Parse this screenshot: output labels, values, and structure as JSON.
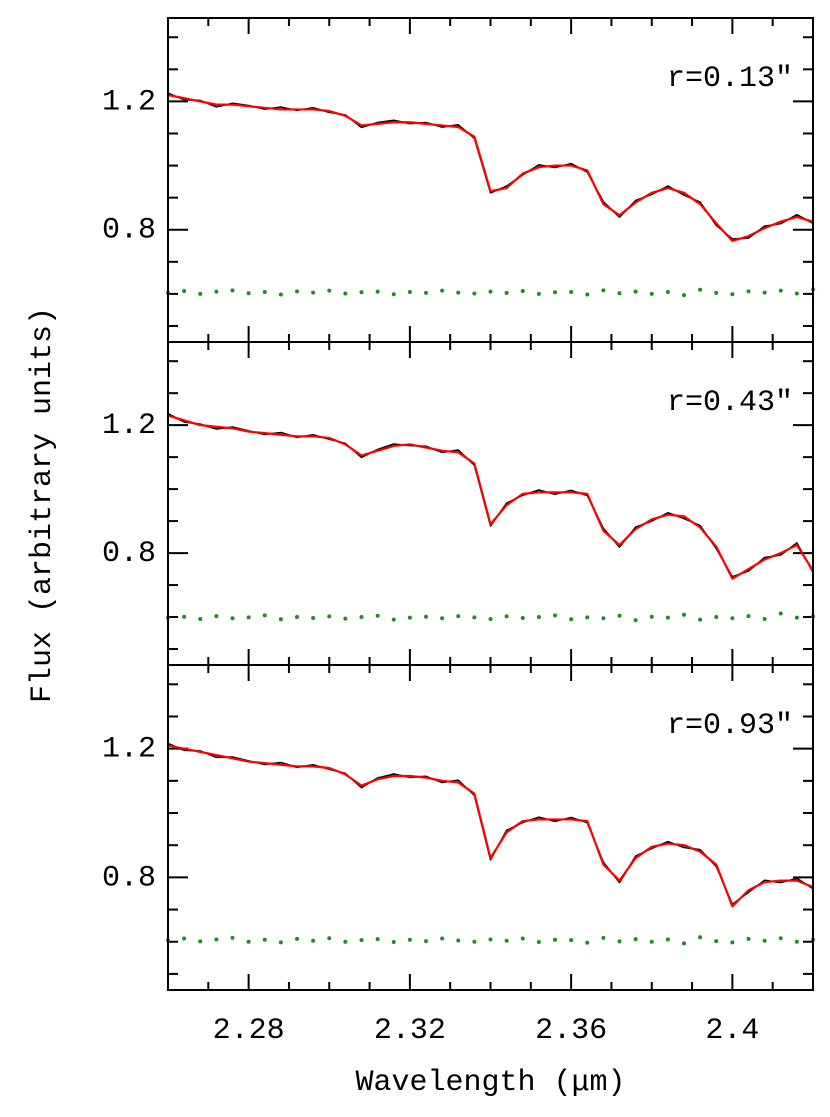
{
  "chart_data": [
    {
      "type": "line",
      "annotation": "r=0.13″",
      "x": [
        2.26,
        2.264,
        2.268,
        2.272,
        2.276,
        2.28,
        2.284,
        2.288,
        2.292,
        2.296,
        2.3,
        2.304,
        2.308,
        2.312,
        2.316,
        2.32,
        2.324,
        2.328,
        2.332,
        2.336,
        2.34,
        2.344,
        2.348,
        2.352,
        2.356,
        2.36,
        2.364,
        2.368,
        2.372,
        2.376,
        2.38,
        2.384,
        2.388,
        2.392,
        2.396,
        2.4,
        2.404,
        2.408,
        2.412,
        2.416,
        2.42
      ],
      "series": [
        {
          "type": "line",
          "color": "#000000",
          "values": [
            1.226,
            1.205,
            1.203,
            1.183,
            1.194,
            1.187,
            1.176,
            1.182,
            1.172,
            1.18,
            1.166,
            1.158,
            1.119,
            1.134,
            1.141,
            1.131,
            1.134,
            1.12,
            1.127,
            1.085,
            0.915,
            0.936,
            0.971,
            1.002,
            0.994,
            1.006,
            0.98,
            0.887,
            0.839,
            0.891,
            0.91,
            0.936,
            0.908,
            0.886,
            0.814,
            0.771,
            0.774,
            0.811,
            0.819,
            0.847,
            0.82
          ]
        },
        {
          "type": "line",
          "color": "#ff0000",
          "values": [
            1.22,
            1.21,
            1.2,
            1.19,
            1.19,
            1.185,
            1.18,
            1.175,
            1.175,
            1.175,
            1.17,
            1.155,
            1.125,
            1.13,
            1.135,
            1.135,
            1.13,
            1.125,
            1.12,
            1.09,
            0.92,
            0.93,
            0.975,
            0.995,
            1.0,
            1.0,
            0.985,
            0.88,
            0.845,
            0.885,
            0.915,
            0.93,
            0.915,
            0.88,
            0.82,
            0.765,
            0.78,
            0.805,
            0.825,
            0.84,
            0.825
          ]
        },
        {
          "type": "scatter",
          "color": "#228b22",
          "values": [
            0.603,
            0.609,
            0.6,
            0.607,
            0.611,
            0.602,
            0.606,
            0.598,
            0.608,
            0.604,
            0.61,
            0.601,
            0.605,
            0.607,
            0.599,
            0.606,
            0.603,
            0.61,
            0.604,
            0.601,
            0.607,
            0.603,
            0.609,
            0.6,
            0.605,
            0.606,
            0.598,
            0.611,
            0.602,
            0.607,
            0.6,
            0.606,
            0.596,
            0.613,
            0.603,
            0.599,
            0.608,
            0.604,
            0.61,
            0.601,
            0.614
          ]
        }
      ],
      "xlim": [
        2.26,
        2.42
      ],
      "ylim": [
        0.45,
        1.46
      ],
      "xticks": [
        2.28,
        2.32,
        2.36,
        2.4
      ],
      "yticks": [
        0.8,
        1.2
      ],
      "xminorticks": [
        2.27,
        2.29,
        2.3,
        2.31,
        2.33,
        2.34,
        2.35,
        2.37,
        2.38,
        2.39,
        2.41
      ],
      "yminorticks": [
        0.5,
        0.6,
        0.7,
        0.9,
        1.0,
        1.1,
        1.3,
        1.4
      ]
    },
    {
      "type": "line",
      "annotation": "r=0.43″",
      "ylabel": "Flux (arbitrary units)",
      "x": [
        2.26,
        2.264,
        2.268,
        2.272,
        2.276,
        2.28,
        2.284,
        2.288,
        2.292,
        2.296,
        2.3,
        2.304,
        2.308,
        2.312,
        2.316,
        2.32,
        2.324,
        2.328,
        2.332,
        2.336,
        2.34,
        2.344,
        2.348,
        2.352,
        2.356,
        2.36,
        2.364,
        2.368,
        2.372,
        2.376,
        2.38,
        2.384,
        2.388,
        2.392,
        2.396,
        2.4,
        2.404,
        2.408,
        2.412,
        2.416,
        2.42
      ],
      "series": [
        {
          "type": "line",
          "color": "#000000",
          "values": [
            1.236,
            1.21,
            1.203,
            1.188,
            1.194,
            1.182,
            1.171,
            1.177,
            1.162,
            1.17,
            1.156,
            1.143,
            1.099,
            1.124,
            1.141,
            1.136,
            1.134,
            1.115,
            1.122,
            1.075,
            0.885,
            0.956,
            0.981,
            0.997,
            0.984,
            0.996,
            0.98,
            0.877,
            0.819,
            0.881,
            0.9,
            0.926,
            0.908,
            0.886,
            0.814,
            0.726,
            0.744,
            0.786,
            0.794,
            0.832,
            0.74
          ]
        },
        {
          "type": "line",
          "color": "#ff0000",
          "values": [
            1.23,
            1.215,
            1.2,
            1.195,
            1.19,
            1.18,
            1.175,
            1.17,
            1.165,
            1.165,
            1.16,
            1.14,
            1.105,
            1.12,
            1.135,
            1.14,
            1.13,
            1.12,
            1.115,
            1.08,
            0.89,
            0.95,
            0.985,
            0.99,
            0.99,
            0.99,
            0.985,
            0.87,
            0.825,
            0.875,
            0.905,
            0.92,
            0.915,
            0.88,
            0.82,
            0.72,
            0.75,
            0.78,
            0.8,
            0.825,
            0.745
          ]
        },
        {
          "type": "scatter",
          "color": "#228b22",
          "values": [
            0.598,
            0.601,
            0.594,
            0.603,
            0.596,
            0.599,
            0.605,
            0.593,
            0.6,
            0.597,
            0.602,
            0.595,
            0.6,
            0.604,
            0.592,
            0.598,
            0.601,
            0.596,
            0.603,
            0.599,
            0.594,
            0.602,
            0.597,
            0.6,
            0.605,
            0.593,
            0.599,
            0.596,
            0.604,
            0.59,
            0.601,
            0.598,
            0.607,
            0.592,
            0.6,
            0.596,
            0.603,
            0.594,
            0.611,
            0.598,
            0.602
          ]
        }
      ],
      "xlim": [
        2.26,
        2.42
      ],
      "ylim": [
        0.45,
        1.46
      ],
      "xticks": [
        2.28,
        2.32,
        2.36,
        2.4
      ],
      "yticks": [
        0.8,
        1.2
      ],
      "xminorticks": [
        2.27,
        2.29,
        2.3,
        2.31,
        2.33,
        2.34,
        2.35,
        2.37,
        2.38,
        2.39,
        2.41
      ],
      "yminorticks": [
        0.5,
        0.6,
        0.7,
        0.9,
        1.0,
        1.1,
        1.3,
        1.4
      ]
    },
    {
      "type": "line",
      "annotation": "r=0.93″",
      "xlabel": "Wavelength (μm)",
      "x": [
        2.26,
        2.264,
        2.268,
        2.272,
        2.276,
        2.28,
        2.284,
        2.288,
        2.292,
        2.296,
        2.3,
        2.304,
        2.308,
        2.312,
        2.316,
        2.32,
        2.324,
        2.328,
        2.332,
        2.336,
        2.34,
        2.344,
        2.348,
        2.352,
        2.356,
        2.36,
        2.364,
        2.368,
        2.372,
        2.376,
        2.38,
        2.384,
        2.388,
        2.392,
        2.396,
        2.4,
        2.404,
        2.408,
        2.412,
        2.416,
        2.42
      ],
      "series": [
        {
          "type": "line",
          "color": "#000000",
          "values": [
            1.216,
            1.195,
            1.193,
            1.173,
            1.174,
            1.162,
            1.151,
            1.157,
            1.142,
            1.15,
            1.136,
            1.123,
            1.079,
            1.109,
            1.121,
            1.111,
            1.114,
            1.095,
            1.102,
            1.055,
            0.855,
            0.946,
            0.971,
            0.987,
            0.974,
            0.986,
            0.97,
            0.847,
            0.784,
            0.866,
            0.89,
            0.911,
            0.893,
            0.886,
            0.834,
            0.716,
            0.754,
            0.791,
            0.784,
            0.797,
            0.765
          ]
        },
        {
          "type": "line",
          "color": "#ff0000",
          "values": [
            1.21,
            1.2,
            1.19,
            1.18,
            1.17,
            1.16,
            1.155,
            1.15,
            1.145,
            1.145,
            1.14,
            1.12,
            1.085,
            1.105,
            1.115,
            1.115,
            1.11,
            1.1,
            1.095,
            1.06,
            0.86,
            0.94,
            0.975,
            0.98,
            0.98,
            0.98,
            0.975,
            0.84,
            0.79,
            0.86,
            0.895,
            0.905,
            0.9,
            0.88,
            0.84,
            0.71,
            0.76,
            0.785,
            0.79,
            0.79,
            0.77
          ]
        },
        {
          "type": "scatter",
          "color": "#228b22",
          "values": [
            0.604,
            0.61,
            0.601,
            0.607,
            0.612,
            0.6,
            0.606,
            0.598,
            0.609,
            0.603,
            0.611,
            0.6,
            0.605,
            0.608,
            0.599,
            0.606,
            0.602,
            0.61,
            0.604,
            0.6,
            0.607,
            0.603,
            0.61,
            0.599,
            0.606,
            0.605,
            0.597,
            0.612,
            0.601,
            0.608,
            0.6,
            0.607,
            0.595,
            0.614,
            0.602,
            0.598,
            0.609,
            0.603,
            0.611,
            0.6,
            0.606
          ]
        }
      ],
      "xlim": [
        2.26,
        2.42
      ],
      "ylim": [
        0.45,
        1.46
      ],
      "xticks": [
        2.28,
        2.32,
        2.36,
        2.4
      ],
      "yticks": [
        0.8,
        1.2
      ],
      "xminorticks": [
        2.27,
        2.29,
        2.3,
        2.31,
        2.33,
        2.34,
        2.35,
        2.37,
        2.38,
        2.39,
        2.41
      ],
      "yminorticks": [
        0.5,
        0.6,
        0.7,
        0.9,
        1.0,
        1.1,
        1.3,
        1.4
      ]
    }
  ]
}
